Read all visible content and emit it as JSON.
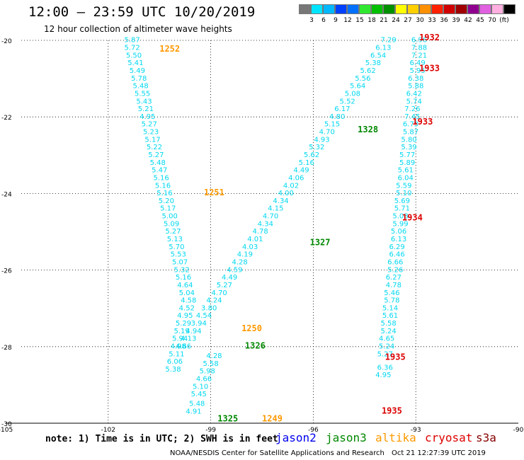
{
  "header": {
    "title": "12:00 — 23:59 UTC 10/20/2019",
    "subtitle": "12 hour collection of altimeter wave heights"
  },
  "colorbar": {
    "colors": [
      "#777777",
      "#00e5ff",
      "#00b8ff",
      "#0040ff",
      "#0070ff",
      "#30e830",
      "#00c000",
      "#009000",
      "#ffff00",
      "#ffd000",
      "#ff9000",
      "#ff2000",
      "#d00000",
      "#a00000",
      "#900090",
      "#e060e0",
      "#ffb0e0",
      "#000000"
    ],
    "labels": [
      "3",
      "6",
      "9",
      "12",
      "15",
      "18",
      "21",
      "24",
      "27",
      "30",
      "33",
      "36",
      "39",
      "42",
      "45",
      "70",
      "(ft)"
    ]
  },
  "map": {
    "lat_ticks": [
      "-20",
      "-22",
      "-24",
      "-26",
      "-28",
      "-30"
    ],
    "lon_ticks": [
      "-105",
      "-102",
      "-99",
      "-96",
      "-93",
      "-90"
    ]
  },
  "chart_data": {
    "type": "scatter",
    "xlim": [
      -105,
      -90
    ],
    "ylim": [
      -30,
      -20
    ],
    "title": "12:00 — 23:59 UTC 10/20/2019",
    "track_labels": [
      {
        "text": "1252",
        "color": "#ff9900",
        "lon": -100.2,
        "lat": -20.3
      },
      {
        "text": "1251",
        "color": "#ff9900",
        "lon": -98.9,
        "lat": -24.05
      },
      {
        "text": "1250",
        "color": "#ff9900",
        "lon": -97.8,
        "lat": -27.6
      },
      {
        "text": "1249",
        "color": "#ff9900",
        "lon": -97.2,
        "lat": -29.95
      },
      {
        "text": "1328",
        "color": "#008800",
        "lon": -94.4,
        "lat": -22.4
      },
      {
        "text": "1327",
        "color": "#008800",
        "lon": -95.8,
        "lat": -25.35
      },
      {
        "text": "1326",
        "color": "#008800",
        "lon": -97.7,
        "lat": -28.05
      },
      {
        "text": "1325",
        "color": "#008800",
        "lon": -98.5,
        "lat": -29.95
      },
      {
        "text": "1932",
        "color": "#dd0000",
        "lon": -92.6,
        "lat": -20.0
      },
      {
        "text": "1933",
        "color": "#dd0000",
        "lon": -92.6,
        "lat": -20.8
      },
      {
        "text": "1933",
        "color": "#dd0000",
        "lon": -92.8,
        "lat": -22.2
      },
      {
        "text": "1934",
        "color": "#dd0000",
        "lon": -93.1,
        "lat": -24.7
      },
      {
        "text": "1935",
        "color": "#dd0000",
        "lon": -93.6,
        "lat": -28.35
      },
      {
        "text": "1935",
        "color": "#dd0000",
        "lon": -93.7,
        "lat": -29.75
      }
    ],
    "series": [
      {
        "color": "#00d8f0",
        "points": [
          [
            -101.3,
            -20.05,
            "5.87"
          ],
          [
            -101.3,
            -20.25,
            "5.72"
          ],
          [
            -101.25,
            -20.45,
            "5.50"
          ],
          [
            -101.2,
            -20.65,
            "5.41"
          ],
          [
            -101.15,
            -20.85,
            "5.49"
          ],
          [
            -101.1,
            -21.05,
            "5.78"
          ],
          [
            -101.05,
            -21.25,
            "5.48"
          ],
          [
            -101.0,
            -21.45,
            "5.55"
          ],
          [
            -100.95,
            -21.65,
            "5.43"
          ],
          [
            -100.9,
            -21.85,
            "5.21"
          ],
          [
            -100.85,
            -22.05,
            "4.95"
          ],
          [
            -100.8,
            -22.25,
            "5.27"
          ],
          [
            -100.75,
            -22.45,
            "5.23"
          ],
          [
            -100.7,
            -22.65,
            "5.17"
          ],
          [
            -100.65,
            -22.85,
            "5.22"
          ],
          [
            -100.6,
            -23.05,
            "5.27"
          ],
          [
            -100.55,
            -23.25,
            "5.48"
          ],
          [
            -100.5,
            -23.45,
            "5.47"
          ],
          [
            -100.45,
            -23.65,
            "5.16"
          ],
          [
            -100.4,
            -23.85,
            "5.16"
          ],
          [
            -100.35,
            -24.05,
            "5.16"
          ],
          [
            -100.3,
            -24.25,
            "5.20"
          ],
          [
            -100.25,
            -24.45,
            "5.17"
          ],
          [
            -100.2,
            -24.65,
            "5.00"
          ],
          [
            -100.15,
            -24.85,
            "5.09"
          ],
          [
            -100.1,
            -25.05,
            "5.27"
          ],
          [
            -100.05,
            -25.25,
            "5.13"
          ],
          [
            -100.0,
            -25.45,
            "5.70"
          ],
          [
            -99.95,
            -25.65,
            "5.53"
          ],
          [
            -99.9,
            -25.85,
            "5.07"
          ],
          [
            -99.85,
            -26.05,
            "5.32"
          ],
          [
            -99.8,
            -26.25,
            "5.16"
          ],
          [
            -99.75,
            -26.45,
            "4.64"
          ],
          [
            -99.7,
            -26.65,
            "5.04"
          ],
          [
            -99.65,
            -26.85,
            "4.58"
          ],
          [
            -99.7,
            -27.05,
            "4.52"
          ],
          [
            -99.75,
            -27.25,
            "4.95"
          ],
          [
            -99.8,
            -27.45,
            "5.29"
          ],
          [
            -99.85,
            -27.65,
            "5.19"
          ],
          [
            -99.9,
            -27.85,
            "5.94"
          ],
          [
            -99.95,
            -28.05,
            "4.98"
          ],
          [
            -100.0,
            -28.25,
            "5.11"
          ],
          [
            -100.05,
            -28.45,
            "6.06"
          ],
          [
            -100.1,
            -28.65,
            "5.38"
          ]
        ]
      },
      {
        "color": "#00d8f0",
        "points": [
          [
            -93.8,
            -20.05,
            "7.29"
          ],
          [
            -93.95,
            -20.25,
            "6.13"
          ],
          [
            -94.1,
            -20.45,
            "6.54"
          ],
          [
            -94.25,
            -20.65,
            "5.38"
          ],
          [
            -94.4,
            -20.85,
            "5.62"
          ],
          [
            -94.55,
            -21.05,
            "5.56"
          ],
          [
            -94.7,
            -21.25,
            "5.64"
          ],
          [
            -94.85,
            -21.45,
            "5.08"
          ],
          [
            -95.0,
            -21.65,
            "5.52"
          ],
          [
            -95.15,
            -21.85,
            "6.17"
          ],
          [
            -95.3,
            -22.05,
            "4.80"
          ],
          [
            -95.45,
            -22.25,
            "5.15"
          ],
          [
            -95.6,
            -22.45,
            "4.70"
          ],
          [
            -95.75,
            -22.65,
            "4.93"
          ],
          [
            -95.9,
            -22.85,
            "5.32"
          ],
          [
            -96.05,
            -23.05,
            "5.62"
          ],
          [
            -96.2,
            -23.25,
            "5.16"
          ],
          [
            -96.35,
            -23.45,
            "4.49"
          ],
          [
            -96.5,
            -23.65,
            "4.06"
          ],
          [
            -96.65,
            -23.85,
            "4.02"
          ],
          [
            -96.8,
            -24.05,
            "4.00"
          ],
          [
            -96.95,
            -24.25,
            "4.34"
          ],
          [
            -97.1,
            -24.45,
            "4.15"
          ],
          [
            -97.25,
            -24.65,
            "4.70"
          ],
          [
            -97.4,
            -24.85,
            "4.34"
          ],
          [
            -97.55,
            -25.05,
            "4.78"
          ],
          [
            -97.7,
            -25.25,
            "4.01"
          ],
          [
            -97.85,
            -25.45,
            "4.03"
          ],
          [
            -98.0,
            -25.65,
            "4.19"
          ],
          [
            -98.15,
            -25.85,
            "4.28"
          ],
          [
            -98.3,
            -26.05,
            "4.59"
          ],
          [
            -98.45,
            -26.25,
            "4.49"
          ],
          [
            -98.6,
            -26.45,
            "5.27"
          ],
          [
            -98.75,
            -26.65,
            "4.70"
          ],
          [
            -98.9,
            -26.85,
            "4.24"
          ],
          [
            -99.05,
            -27.05,
            "3.80"
          ],
          [
            -99.2,
            -27.25,
            "4.54"
          ],
          [
            -99.35,
            -27.45,
            "3.94"
          ],
          [
            -99.5,
            -27.65,
            "4.94"
          ],
          [
            -99.65,
            -27.85,
            "4.13"
          ],
          [
            -99.8,
            -28.05,
            "4.66"
          ]
        ]
      },
      {
        "color": "#00d8f0",
        "points": [
          [
            -98.9,
            -28.3,
            "4.28"
          ],
          [
            -99.0,
            -28.5,
            "5.58"
          ],
          [
            -99.1,
            -28.7,
            "5.98"
          ],
          [
            -99.2,
            -28.9,
            "4.66"
          ],
          [
            -99.3,
            -29.1,
            "5.10"
          ],
          [
            -99.35,
            -29.3,
            "5.45"
          ],
          [
            -99.4,
            -29.55,
            "5.48"
          ],
          [
            -99.5,
            -29.75,
            "4.91"
          ]
        ]
      },
      {
        "color": "#00d8f0",
        "points": [
          [
            -92.9,
            -20.05,
            "6.96"
          ],
          [
            -92.9,
            -20.25,
            "7.88"
          ],
          [
            -92.9,
            -20.45,
            "7.21"
          ],
          [
            -92.95,
            -20.65,
            "6.49"
          ],
          [
            -92.95,
            -20.85,
            "5.95"
          ],
          [
            -93.0,
            -21.05,
            "6.38"
          ],
          [
            -93.0,
            -21.25,
            "5.88"
          ],
          [
            -93.05,
            -21.45,
            "6.42"
          ],
          [
            -93.05,
            -21.65,
            "5.74"
          ],
          [
            -93.1,
            -21.85,
            "7.26"
          ],
          [
            -93.1,
            -22.05,
            "7.45"
          ],
          [
            -93.15,
            -22.25,
            "6.73"
          ],
          [
            -93.15,
            -22.45,
            "5.87"
          ],
          [
            -93.2,
            -22.65,
            "5.80"
          ],
          [
            -93.2,
            -22.85,
            "5.39"
          ],
          [
            -93.25,
            -23.05,
            "5.77"
          ],
          [
            -93.25,
            -23.25,
            "5.89"
          ],
          [
            -93.3,
            -23.45,
            "5.61"
          ],
          [
            -93.3,
            -23.65,
            "6.04"
          ],
          [
            -93.35,
            -23.85,
            "5.59"
          ],
          [
            -93.35,
            -24.05,
            "5.10"
          ],
          [
            -93.4,
            -24.25,
            "5.69"
          ],
          [
            -93.4,
            -24.45,
            "5.71"
          ],
          [
            -93.45,
            -24.65,
            "5.08"
          ],
          [
            -93.45,
            -24.85,
            "5.99"
          ],
          [
            -93.5,
            -25.05,
            "5.06"
          ],
          [
            -93.5,
            -25.25,
            "6.13"
          ],
          [
            -93.55,
            -25.45,
            "6.29"
          ],
          [
            -93.55,
            -25.65,
            "6.46"
          ],
          [
            -93.6,
            -25.85,
            "6.66"
          ],
          [
            -93.6,
            -26.05,
            "5.26"
          ],
          [
            -93.65,
            -26.25,
            "6.27"
          ],
          [
            -93.65,
            -26.45,
            "4.78"
          ],
          [
            -93.7,
            -26.65,
            "5.46"
          ],
          [
            -93.7,
            -26.85,
            "5.78"
          ],
          [
            -93.75,
            -27.05,
            "5.14"
          ],
          [
            -93.75,
            -27.25,
            "5.61"
          ],
          [
            -93.8,
            -27.45,
            "5.58"
          ],
          [
            -93.8,
            -27.65,
            "5.24"
          ],
          [
            -93.85,
            -27.85,
            "4.65"
          ],
          [
            -93.85,
            -28.05,
            "5.24"
          ],
          [
            -93.9,
            -28.25,
            "5.27"
          ],
          [
            -93.9,
            -28.6,
            "6.36"
          ],
          [
            -93.95,
            -28.8,
            "4.95"
          ]
        ]
      }
    ]
  },
  "note": "note: 1) Time is in UTC; 2) SWH is in feet",
  "legend": [
    {
      "label": "jason2",
      "color": "#0000ee"
    },
    {
      "label": "jason3",
      "color": "#008800"
    },
    {
      "label": "altika",
      "color": "#ff9900"
    },
    {
      "label": "cryosat",
      "color": "#dd0000"
    },
    {
      "label": "s3a",
      "color": "#880000"
    }
  ],
  "credit": "NOAA/NESDIS Center for Satellite Applications and Research",
  "stamp": "Oct 21 12:27:39 UTC 2019"
}
